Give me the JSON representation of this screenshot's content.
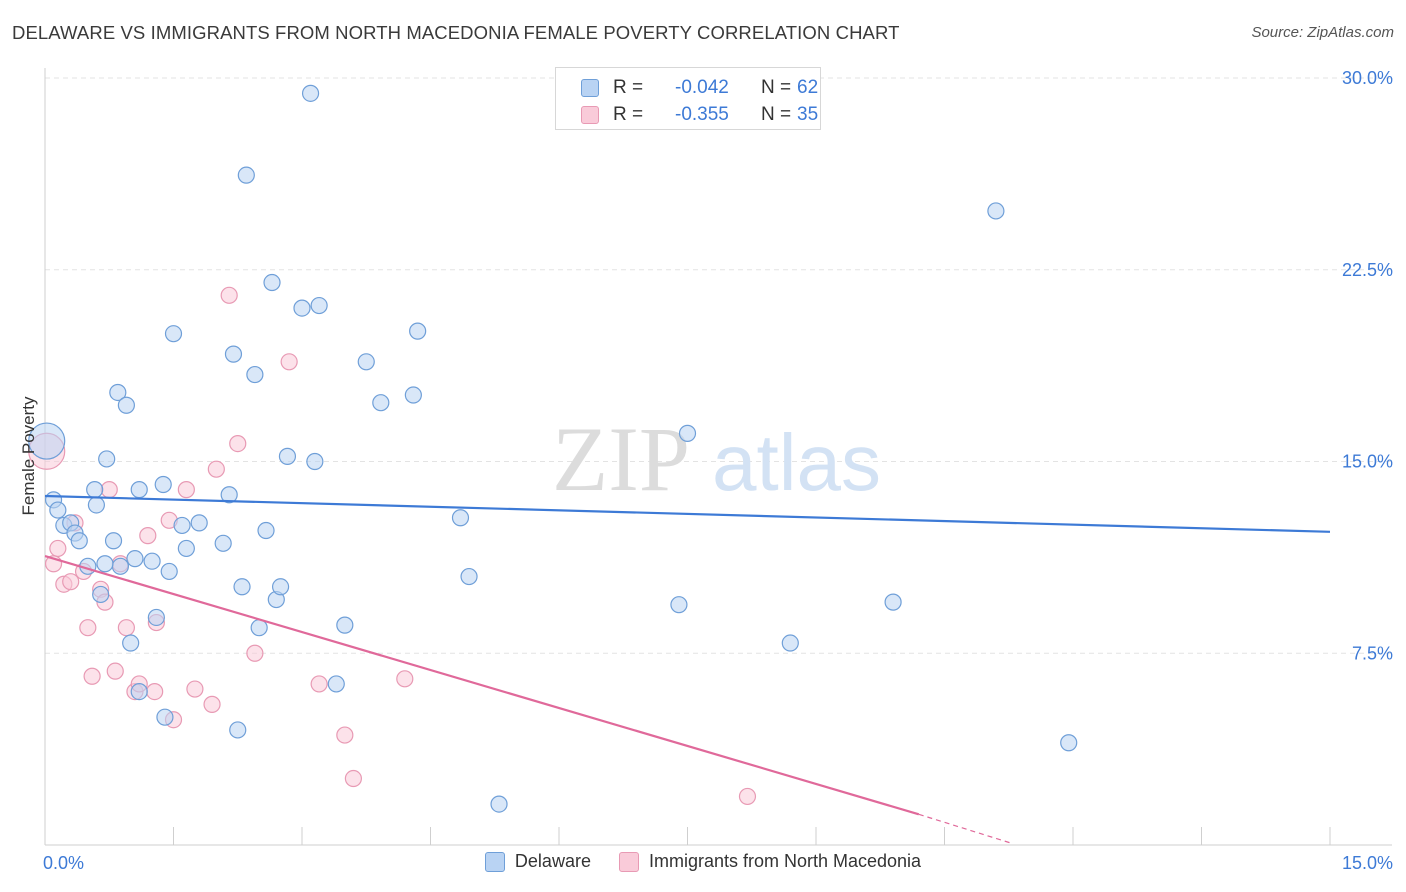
{
  "title": "DELAWARE VS IMMIGRANTS FROM NORTH MACEDONIA FEMALE POVERTY CORRELATION CHART",
  "source": "Source: ZipAtlas.com",
  "watermark": {
    "zip": "ZIP",
    "atlas": "atlas"
  },
  "stats": {
    "delaware": {
      "r_label": "R =",
      "r_value": "-0.042",
      "n_label": "N =",
      "n_value": "62"
    },
    "macedonia": {
      "r_label": "R =",
      "r_value": "-0.355",
      "n_label": "N =",
      "n_value": "35"
    }
  },
  "colors": {
    "blue_fill": "#b9d3f3",
    "blue_stroke": "#6f9fd8",
    "blue_line": "#3d7ad6",
    "pink_fill": "#f9cbd9",
    "pink_stroke": "#e89ab4",
    "pink_line": "#e0699a",
    "grid": "#e3e3e3",
    "tick_text": "#3d7ad6"
  },
  "chart_data": {
    "type": "scatter",
    "xlabel": "",
    "ylabel": "Female Poverty",
    "xlim": [
      0,
      15
    ],
    "ylim": [
      0,
      30
    ],
    "x_tick_labels": [
      "0.0%",
      "15.0%"
    ],
    "y_ticks": [
      7.5,
      15.0,
      22.5,
      30.0
    ],
    "y_tick_labels": [
      "7.5%",
      "15.0%",
      "22.5%",
      "30.0%"
    ],
    "legend": [
      "Delaware",
      "Immigrants from North Macedonia"
    ],
    "series": [
      {
        "name": "Delaware",
        "points": [
          [
            0.02,
            15.8,
            "large"
          ],
          [
            0.1,
            13.5
          ],
          [
            0.15,
            13.1
          ],
          [
            0.22,
            12.5
          ],
          [
            0.3,
            12.6
          ],
          [
            0.35,
            12.2
          ],
          [
            0.4,
            11.9
          ],
          [
            0.5,
            10.9
          ],
          [
            0.58,
            13.9
          ],
          [
            0.6,
            13.3
          ],
          [
            0.65,
            9.8
          ],
          [
            0.72,
            15.1
          ],
          [
            0.8,
            11.9
          ],
          [
            0.85,
            17.7
          ],
          [
            0.88,
            10.9
          ],
          [
            0.95,
            17.2
          ],
          [
            1.05,
            11.2
          ],
          [
            1.1,
            13.9
          ],
          [
            1.25,
            11.1
          ],
          [
            1.3,
            8.9
          ],
          [
            1.38,
            14.1
          ],
          [
            1.45,
            10.7
          ],
          [
            1.5,
            20.0
          ],
          [
            1.6,
            12.5
          ],
          [
            1.65,
            11.6
          ],
          [
            1.8,
            12.6
          ],
          [
            2.08,
            11.8
          ],
          [
            2.15,
            13.7
          ],
          [
            2.2,
            19.2
          ],
          [
            2.3,
            10.1
          ],
          [
            2.35,
            26.2
          ],
          [
            2.45,
            18.4
          ],
          [
            2.58,
            12.3
          ],
          [
            2.65,
            22.0
          ],
          [
            2.7,
            9.6
          ],
          [
            2.75,
            10.1
          ],
          [
            2.83,
            15.2
          ],
          [
            3.0,
            21.0
          ],
          [
            3.1,
            29.4
          ],
          [
            3.15,
            15.0
          ],
          [
            3.2,
            21.1
          ],
          [
            3.4,
            6.3
          ],
          [
            3.5,
            8.6
          ],
          [
            3.75,
            18.9
          ],
          [
            3.92,
            17.3
          ],
          [
            4.3,
            17.6
          ],
          [
            4.35,
            20.1
          ],
          [
            4.85,
            12.8
          ],
          [
            4.95,
            10.5
          ],
          [
            5.3,
            1.6
          ],
          [
            7.4,
            9.4
          ],
          [
            7.5,
            16.1
          ],
          [
            8.7,
            7.9
          ],
          [
            9.9,
            9.5
          ],
          [
            11.1,
            24.8
          ],
          [
            11.95,
            4.0
          ],
          [
            0.7,
            11.0
          ],
          [
            1.0,
            7.9
          ],
          [
            1.1,
            6.0
          ],
          [
            1.4,
            5.0
          ],
          [
            2.25,
            4.5
          ],
          [
            2.5,
            8.5
          ]
        ],
        "trend": {
          "x0": 0.0,
          "y0": 13.65,
          "x1": 15.0,
          "y1": 12.25
        }
      },
      {
        "name": "Immigrants from North Macedonia",
        "points": [
          [
            0.02,
            15.4,
            "large"
          ],
          [
            0.1,
            11.0
          ],
          [
            0.15,
            11.6
          ],
          [
            0.22,
            10.2
          ],
          [
            0.3,
            10.3
          ],
          [
            0.35,
            12.6
          ],
          [
            0.45,
            10.7
          ],
          [
            0.5,
            8.5
          ],
          [
            0.55,
            6.6
          ],
          [
            0.65,
            10.0
          ],
          [
            0.7,
            9.5
          ],
          [
            0.75,
            13.9
          ],
          [
            0.82,
            6.8
          ],
          [
            0.88,
            11.0
          ],
          [
            0.95,
            8.5
          ],
          [
            1.05,
            6.0
          ],
          [
            1.1,
            6.3
          ],
          [
            1.2,
            12.1
          ],
          [
            1.28,
            6.0
          ],
          [
            1.3,
            8.7
          ],
          [
            1.45,
            12.7
          ],
          [
            1.5,
            4.9
          ],
          [
            1.65,
            13.9
          ],
          [
            1.75,
            6.1
          ],
          [
            1.95,
            5.5
          ],
          [
            2.0,
            14.7
          ],
          [
            2.15,
            21.5
          ],
          [
            2.25,
            15.7
          ],
          [
            2.45,
            7.5
          ],
          [
            2.85,
            18.9
          ],
          [
            3.2,
            6.3
          ],
          [
            3.5,
            4.3
          ],
          [
            3.6,
            2.6
          ],
          [
            4.2,
            6.5
          ],
          [
            8.2,
            1.9
          ]
        ],
        "trend": {
          "x0": 0.0,
          "y0": 11.3,
          "x1": 10.2,
          "y1": 1.2,
          "dash_x1": 11.3,
          "dash_y1": 0.05
        }
      }
    ]
  }
}
